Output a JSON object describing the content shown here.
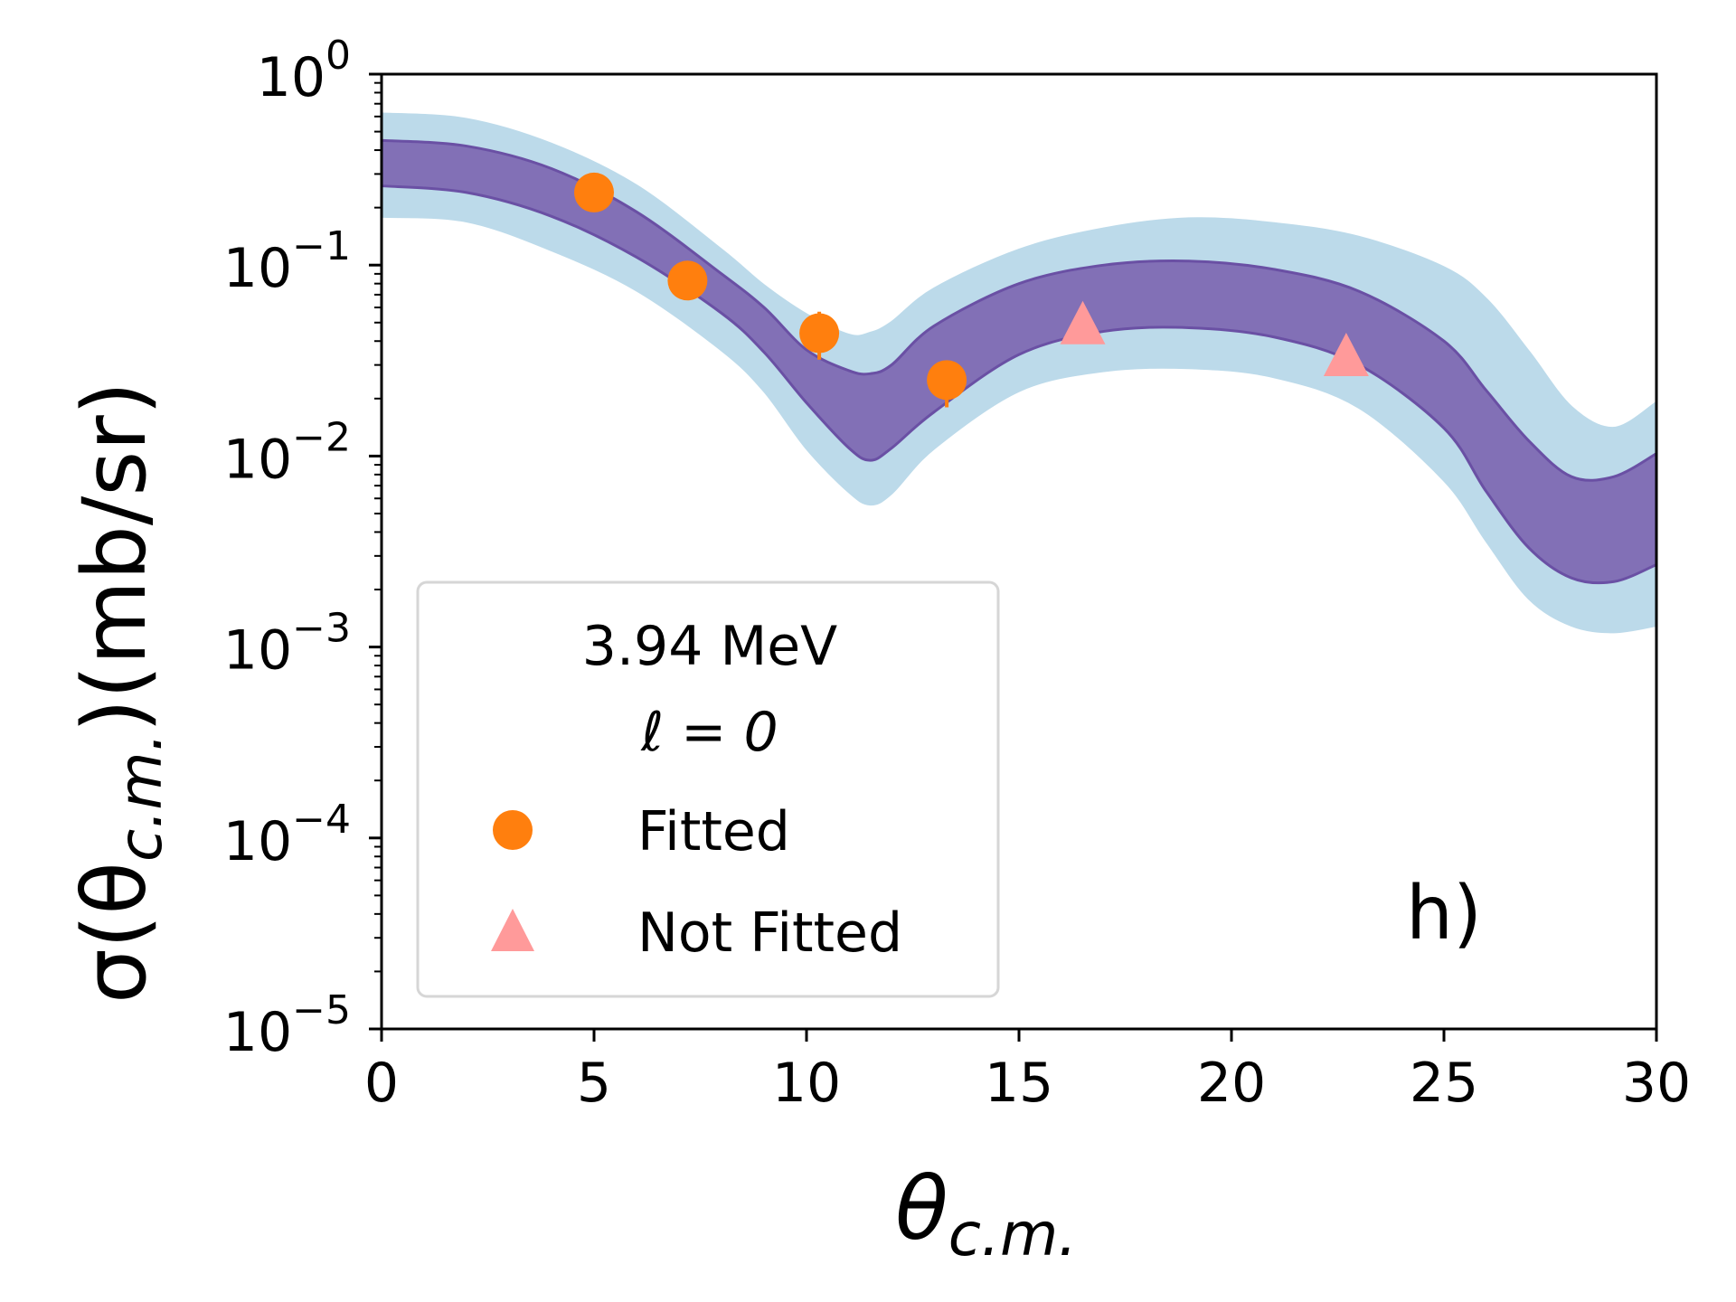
{
  "chart_data": {
    "type": "scatter",
    "panel_label": "h)",
    "xlabel": {
      "main": "θ",
      "sub": "c.m."
    },
    "ylabel": {
      "main": "σ(θ",
      "sub": "c.m.",
      "tail": ")(mb/sr)"
    },
    "xlim": [
      0,
      30
    ],
    "ylim": [
      1e-05,
      1
    ],
    "y_scale": "log",
    "grid": false,
    "x_ticks": [
      0,
      5,
      10,
      15,
      20,
      25,
      30
    ],
    "x_tick_labels": [
      "0",
      "5",
      "10",
      "15",
      "20",
      "25",
      "30"
    ],
    "y_ticks": [
      1e-05,
      0.0001,
      0.001,
      0.01,
      0.1,
      1
    ],
    "y_tick_labels": [
      {
        "base": "10",
        "exp": "−5"
      },
      {
        "base": "10",
        "exp": "−4"
      },
      {
        "base": "10",
        "exp": "−3"
      },
      {
        "base": "10",
        "exp": "−2"
      },
      {
        "base": "10",
        "exp": "−1"
      },
      {
        "base": "10",
        "exp": "0"
      }
    ],
    "legend": {
      "placement": "lower-left",
      "title_line1": "3.94 MeV",
      "title_line2": "ℓ = 0",
      "entries": [
        "Fitted",
        "Not Fitted"
      ]
    },
    "bands": [
      {
        "name": "outer",
        "color": "#bcdaea",
        "x": [
          0,
          2,
          4,
          6,
          8,
          9,
          10,
          11,
          11.5,
          12,
          13,
          15,
          17,
          19,
          21,
          23,
          25,
          26,
          27,
          28,
          29,
          30
        ],
        "lower": [
          0.18,
          0.17,
          0.12,
          0.074,
          0.036,
          0.022,
          0.011,
          0.0065,
          0.0056,
          0.0064,
          0.011,
          0.022,
          0.028,
          0.029,
          0.026,
          0.018,
          0.0075,
          0.0036,
          0.0018,
          0.0013,
          0.0012,
          0.0013
        ],
        "upper": [
          0.62,
          0.58,
          0.43,
          0.26,
          0.12,
          0.078,
          0.055,
          0.043,
          0.044,
          0.05,
          0.075,
          0.12,
          0.155,
          0.175,
          0.165,
          0.14,
          0.097,
          0.066,
          0.035,
          0.018,
          0.014,
          0.019
        ]
      },
      {
        "name": "inner",
        "color": "#8270b6",
        "edge_color": "#6a50a4",
        "x": [
          0,
          2,
          4,
          6,
          8,
          9,
          10,
          11,
          11.5,
          12,
          13,
          15,
          17,
          19,
          21,
          23,
          25,
          26,
          27,
          28,
          29,
          30
        ],
        "lower": [
          0.26,
          0.24,
          0.18,
          0.11,
          0.056,
          0.035,
          0.019,
          0.011,
          0.0095,
          0.011,
          0.017,
          0.034,
          0.045,
          0.047,
          0.042,
          0.03,
          0.014,
          0.0065,
          0.0033,
          0.0023,
          0.0022,
          0.0027
        ],
        "upper": [
          0.45,
          0.42,
          0.32,
          0.19,
          0.09,
          0.06,
          0.036,
          0.028,
          0.027,
          0.03,
          0.048,
          0.08,
          0.1,
          0.105,
          0.095,
          0.073,
          0.04,
          0.022,
          0.012,
          0.0078,
          0.0078,
          0.0103
        ]
      }
    ],
    "series": [
      {
        "name": "Fitted",
        "marker": "circle",
        "color": "#ff7f0e",
        "x": [
          5.0,
          7.2,
          10.3,
          13.3
        ],
        "y": [
          0.24,
          0.083,
          0.044,
          0.025
        ],
        "y_err_low": [
          0.22,
          0.076,
          0.032,
          0.018
        ],
        "y_err_high": [
          0.26,
          0.09,
          0.057,
          0.031
        ]
      },
      {
        "name": "Not Fitted",
        "marker": "triangle",
        "color": "#ff9a9a",
        "x": [
          16.5,
          22.7
        ],
        "y": [
          0.047,
          0.032
        ],
        "y_err_low": [
          0.044,
          0.029
        ],
        "y_err_high": [
          0.05,
          0.035
        ]
      }
    ]
  }
}
